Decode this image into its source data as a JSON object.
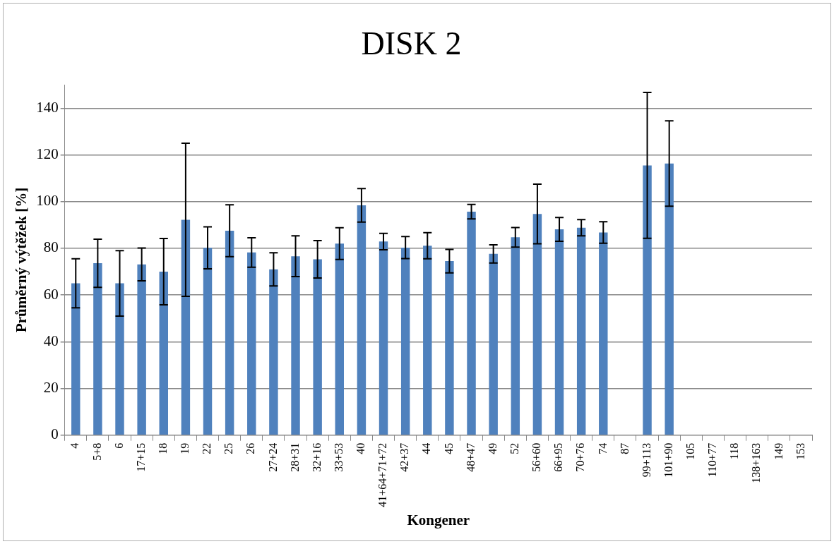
{
  "chart_data": {
    "type": "bar",
    "title": "DISK 2",
    "xlabel": "Kongener",
    "ylabel": "Průměrný výtěžek [%]",
    "categories": [
      "4",
      "5+8",
      "6",
      "17+15",
      "18",
      "19",
      "22",
      "25",
      "26",
      "27+24",
      "28+31",
      "32+16",
      "33+53",
      "40",
      "41+64+71+72",
      "42+37",
      "44",
      "45",
      "48+47",
      "49",
      "52",
      "56+60",
      "66+95",
      "70+76",
      "74",
      "87",
      "99+113",
      "101+90",
      "105",
      "110+77",
      "118",
      "138+163",
      "149",
      "153"
    ],
    "values": [
      65.0,
      73.6,
      65.0,
      73.1,
      70.0,
      92.2,
      80.2,
      87.5,
      78.2,
      71.0,
      76.6,
      75.3,
      82.0,
      98.4,
      82.9,
      80.3,
      81.1,
      74.5,
      95.7,
      77.6,
      84.7,
      94.7,
      88.1,
      88.8,
      86.8,
      0,
      115.5,
      116.3,
      0,
      0,
      0,
      0,
      0,
      0
    ],
    "errors": [
      10.5,
      10.3,
      14,
      7,
      14.2,
      32.8,
      9,
      11.1,
      6.3,
      7.1,
      8.7,
      8,
      6.8,
      7.2,
      3.5,
      4.7,
      5.6,
      5,
      3.1,
      3.9,
      4.2,
      12.8,
      5.1,
      3.5,
      4.6,
      null,
      31.2,
      18.3,
      null,
      null,
      null,
      null,
      null,
      null
    ],
    "color": "#4f81bd",
    "ylim": [
      0,
      150
    ],
    "yticks": [
      0,
      20,
      40,
      60,
      80,
      100,
      120,
      140
    ],
    "grid": "y"
  }
}
